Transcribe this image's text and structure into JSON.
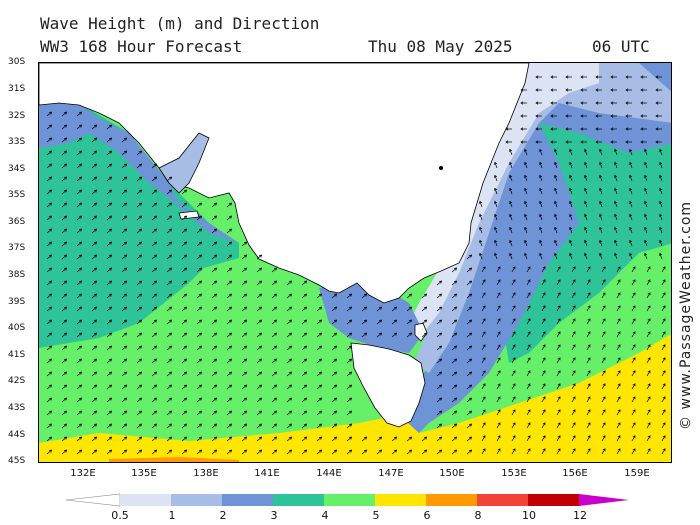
{
  "header": {
    "title": "Wave Height (m) and Direction",
    "model": "WW3 168 Hour Forecast",
    "date": "Thu 08 May 2025",
    "time": "06 UTC"
  },
  "watermark": "© www.PassageWeather.com",
  "axes": {
    "lat_labels": [
      "30S",
      "31S",
      "32S",
      "33S",
      "34S",
      "35S",
      "36S",
      "37S",
      "38S",
      "39S",
      "40S",
      "41S",
      "42S",
      "43S",
      "44S",
      "45S"
    ],
    "lon_labels": [
      "132E",
      "135E",
      "138E",
      "141E",
      "144E",
      "147E",
      "150E",
      "153E",
      "156E",
      "159E"
    ]
  },
  "legend": {
    "labels": [
      "0.5",
      "1",
      "2",
      "3",
      "4",
      "5",
      "6",
      "8",
      "10",
      "12"
    ],
    "colors": [
      "#ffffff",
      "#dce4f4",
      "#a8bde6",
      "#6e93d6",
      "#2ec398",
      "#66f06a",
      "#ffe600",
      "#ff9a00",
      "#f24438",
      "#c20000",
      "#cc00cc"
    ]
  },
  "map_colors": {
    "land": "#ffffff",
    "coast": "#000000",
    "arrow": "#000000"
  }
}
